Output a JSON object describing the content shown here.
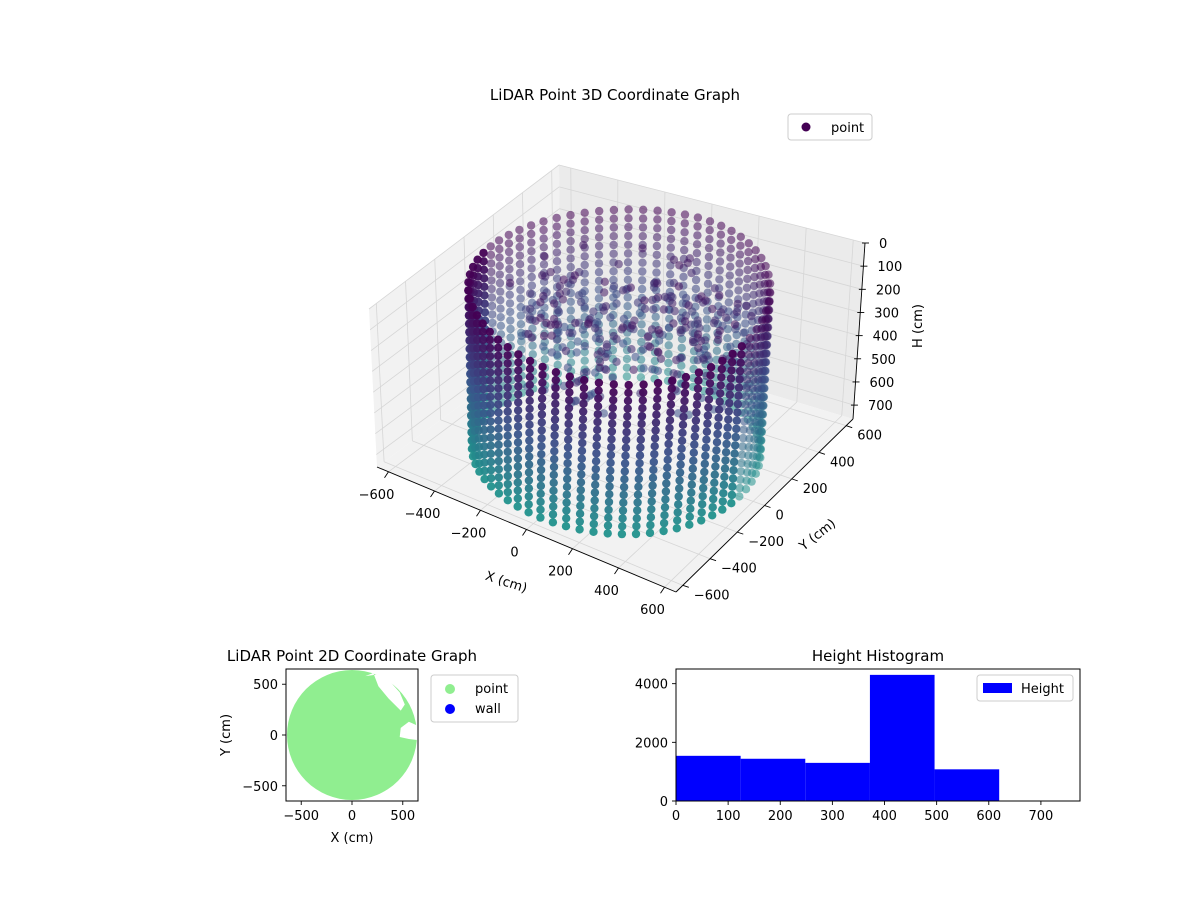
{
  "chart_data": [
    {
      "type": "scatter",
      "projection": "3d",
      "title": "LiDAR Point 3D Coordinate Graph",
      "xlabel": "X (cm)",
      "ylabel": "Y (cm)",
      "zlabel": "H (cm)",
      "xlim": [
        -650,
        650
      ],
      "ylim": [
        -650,
        650
      ],
      "zlim": [
        0,
        760
      ],
      "zaxis_inverted": true,
      "xticks": [
        -600,
        -400,
        -200,
        0,
        200,
        400,
        600
      ],
      "yticks": [
        -600,
        -400,
        -200,
        0,
        200,
        400,
        600
      ],
      "zticks": [
        0,
        100,
        200,
        300,
        400,
        500,
        600,
        700
      ],
      "grid": true,
      "legend": {
        "placement": "upper-right",
        "entries": [
          "point"
        ]
      },
      "series": [
        {
          "name": "point",
          "color_map": "viridis",
          "marker": "circle",
          "shape": "cylindrical wall",
          "wall_radius": 550,
          "wall_height_range": [
            0,
            760
          ],
          "legend_color": "#440154",
          "colormap_colors": [
            "#440154",
            "#3b528b",
            "#21918c"
          ]
        }
      ]
    },
    {
      "type": "scatter",
      "title": "LiDAR Point 2D Coordinate Graph",
      "xlabel": "X (cm)",
      "ylabel": "Y (cm)",
      "xlim": [
        -650,
        650
      ],
      "ylim": [
        -650,
        650
      ],
      "xticks": [
        -500,
        0,
        500
      ],
      "yticks": [
        -500,
        0,
        500
      ],
      "legend": {
        "placement": "outside-right",
        "entries": [
          "point",
          "wall"
        ]
      },
      "series": [
        {
          "name": "point",
          "color": "#90ee90",
          "shape": "filled disk",
          "radius": 640
        },
        {
          "name": "wall",
          "color": "#0000ff"
        }
      ]
    },
    {
      "type": "bar",
      "subtype": "histogram",
      "title": "Height Histogram",
      "xlim": [
        0,
        775
      ],
      "ylim": [
        0,
        4500
      ],
      "xticks": [
        0,
        100,
        200,
        300,
        400,
        500,
        600,
        700
      ],
      "yticks": [
        0,
        2000,
        4000
      ],
      "bin_edges": [
        0,
        124,
        248,
        372,
        496,
        620,
        744
      ],
      "values": [
        1540,
        1440,
        1300,
        4300,
        1080,
        0
      ],
      "color": "#0000ff",
      "legend": {
        "placement": "upper-right",
        "entries": [
          "Height"
        ]
      },
      "series": [
        {
          "name": "Height",
          "values": [
            1540,
            1440,
            1300,
            4300,
            1080,
            0
          ]
        }
      ]
    }
  ]
}
